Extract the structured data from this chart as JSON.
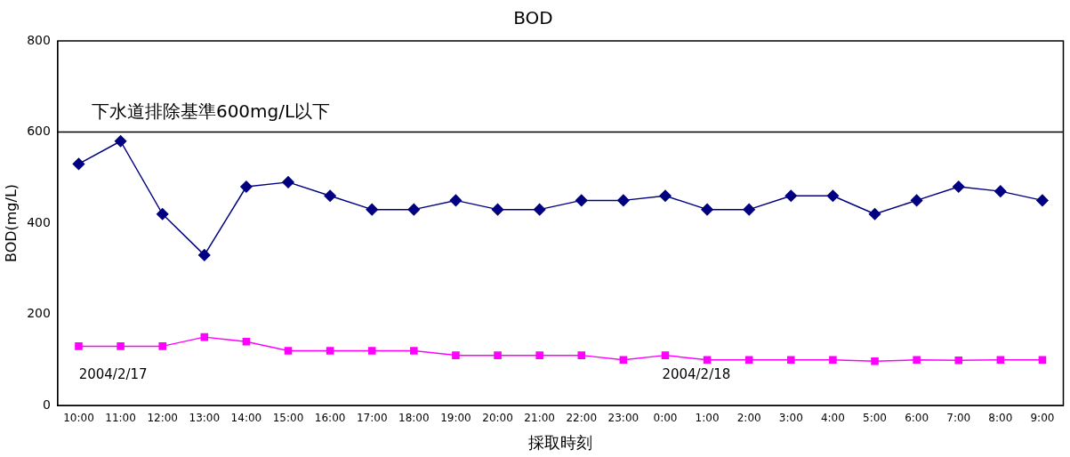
{
  "chart_data": {
    "type": "line",
    "title": "BOD",
    "xlabel": "採取時刻",
    "ylabel": "BOD(mg/L)",
    "categories": [
      "10:00",
      "11:00",
      "12:00",
      "13:00",
      "14:00",
      "15:00",
      "16:00",
      "17:00",
      "18:00",
      "19:00",
      "20:00",
      "21:00",
      "22:00",
      "23:00",
      "0:00",
      "1:00",
      "2:00",
      "3:00",
      "4:00",
      "5:00",
      "6:00",
      "7:00",
      "8:00",
      "9:00"
    ],
    "series": [
      {
        "color": "#000080",
        "marker": "diamond",
        "values": [
          530,
          580,
          420,
          330,
          480,
          490,
          460,
          430,
          430,
          450,
          430,
          430,
          450,
          450,
          460,
          430,
          430,
          460,
          460,
          420,
          450,
          480,
          470,
          450
        ]
      },
      {
        "color": "#ff00ff",
        "marker": "square",
        "values": [
          130,
          130,
          130,
          150,
          140,
          120,
          120,
          120,
          120,
          110,
          110,
          110,
          110,
          100,
          110,
          100,
          100,
          100,
          100,
          97,
          100,
          99,
          100,
          100
        ]
      }
    ],
    "ylim": [
      0,
      800
    ],
    "yticks": [
      0,
      200,
      400,
      600,
      800
    ],
    "grid": false,
    "legend": false,
    "ref_lines": [
      {
        "axis": "y",
        "value": 600,
        "label": "下水道排除基準600mg/L以下",
        "color": "#000000"
      }
    ],
    "annotations": [
      "2004/2/17",
      "2004/2/18"
    ]
  }
}
